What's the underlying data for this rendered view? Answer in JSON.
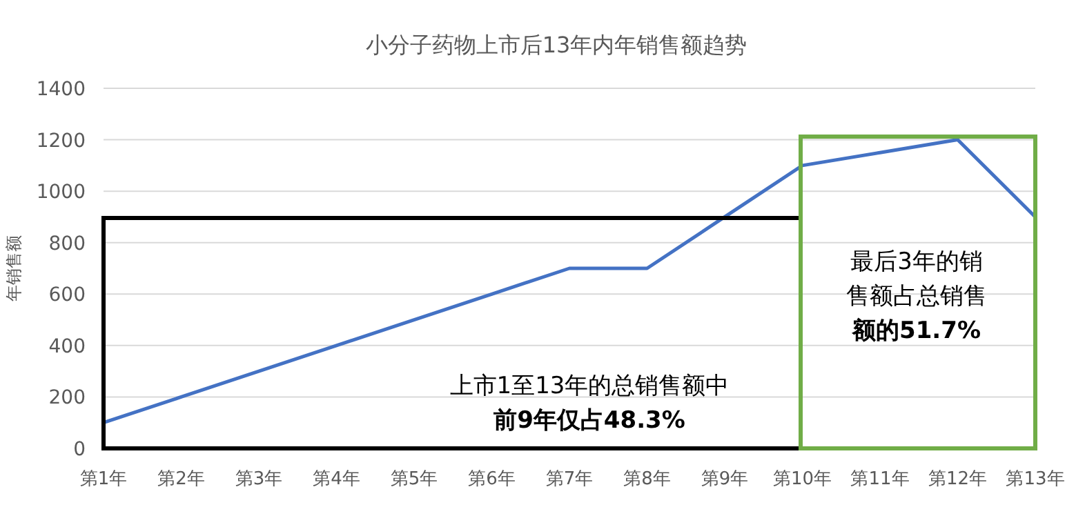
{
  "chart_data": {
    "type": "line",
    "title": "小分子药物上市后13年内年销售额趋势",
    "ylabel": "年销售额",
    "categories": [
      "第1年",
      "第2年",
      "第3年",
      "第4年",
      "第5年",
      "第6年",
      "第7年",
      "第8年",
      "第9年",
      "第10年",
      "第11年",
      "第12年",
      "第13年"
    ],
    "series": [
      {
        "color": "#4472c4",
        "values": [
          100,
          200,
          300,
          400,
          500,
          600,
          700,
          700,
          900,
          1100,
          1150,
          1200,
          900
        ]
      }
    ],
    "ylim": [
      0,
      1400
    ],
    "yticks": [
      0,
      200,
      400,
      600,
      800,
      1000,
      1200,
      1400
    ],
    "grid": "y",
    "marker": "none",
    "line_style": "solid",
    "annotations": [
      "上市1至13年的总销售额中前9年仅占48.3%",
      "最后3年的销售额占总销售额的51.7%"
    ]
  }
}
